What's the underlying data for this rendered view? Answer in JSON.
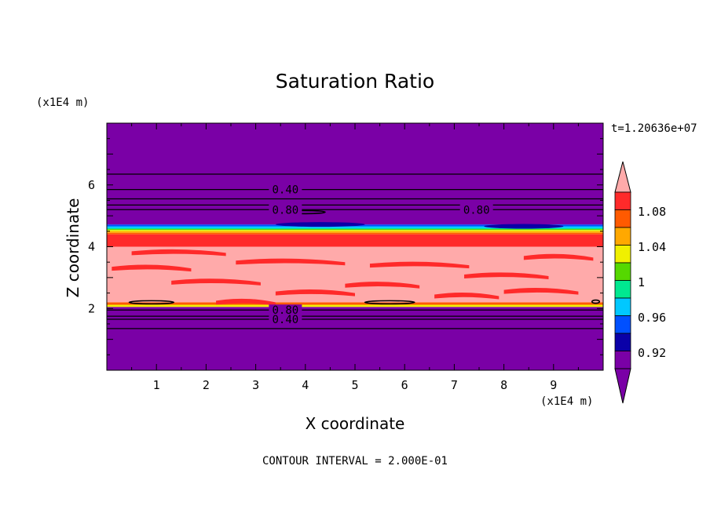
{
  "chart_data": {
    "type": "contour",
    "title": "Saturation Ratio",
    "time_label": "t=1.20636e+07",
    "xlabel": "X coordinate",
    "ylabel": "Z coordinate",
    "x_unit": "(x1E4 m)",
    "y_unit": "(x1E4 m)",
    "xlim": [
      0,
      10
    ],
    "ylim": [
      0,
      8
    ],
    "x_ticks": [
      "1",
      "2",
      "3",
      "4",
      "5",
      "6",
      "7",
      "8",
      "9"
    ],
    "y_ticks": [
      "2",
      "4",
      "6"
    ],
    "contour_interval_text": "CONTOUR INTERVAL = 2.000E-01",
    "colorbar": {
      "tick_labels": [
        "0.92",
        "0.96",
        "1",
        "1.04",
        "1.08"
      ],
      "colors": [
        "#7a00a6",
        "#0a00a8",
        "#0050ff",
        "#00c8ff",
        "#00e890",
        "#55d800",
        "#f0f000",
        "#ffa800",
        "#ff5a00",
        "#ff2a2a",
        "#ffaaaa"
      ]
    },
    "contour_labels": [
      {
        "text": "0.40",
        "x": 3.55,
        "z": 5.85
      },
      {
        "text": "0.80",
        "x": 3.55,
        "z": 5.2
      },
      {
        "text": "0.80",
        "x": 7.4,
        "z": 5.2
      },
      {
        "text": "0.80",
        "x": 3.55,
        "z": 1.95
      },
      {
        "text": "0.40",
        "x": 3.55,
        "z": 1.65
      }
    ],
    "contour_levels_z": [
      6.35,
      5.85,
      5.55,
      5.35,
      5.2,
      1.95,
      1.75,
      1.65,
      1.35
    ],
    "bands": [
      {
        "z0": 0,
        "z1": 2.05,
        "fill": 0
      },
      {
        "z0": 2.05,
        "z1": 2.12,
        "fill": 6
      },
      {
        "z0": 2.12,
        "z1": 2.2,
        "fill": 8
      },
      {
        "z0": 2.2,
        "z1": 4.0,
        "fill": 10
      },
      {
        "z0": 4.0,
        "z1": 4.4,
        "fill": 9
      },
      {
        "z0": 4.4,
        "z1": 4.45,
        "fill": 8
      },
      {
        "z0": 4.45,
        "z1": 4.5,
        "fill": 7
      },
      {
        "z0": 4.5,
        "z1": 4.54,
        "fill": 6
      },
      {
        "z0": 4.54,
        "z1": 4.57,
        "fill": 5
      },
      {
        "z0": 4.57,
        "z1": 4.6,
        "fill": 4
      },
      {
        "z0": 4.6,
        "z1": 4.66,
        "fill": 3
      },
      {
        "z0": 4.66,
        "z1": 4.72,
        "fill": 2
      },
      {
        "z0": 4.72,
        "z1": 8,
        "fill": 0
      }
    ]
  }
}
